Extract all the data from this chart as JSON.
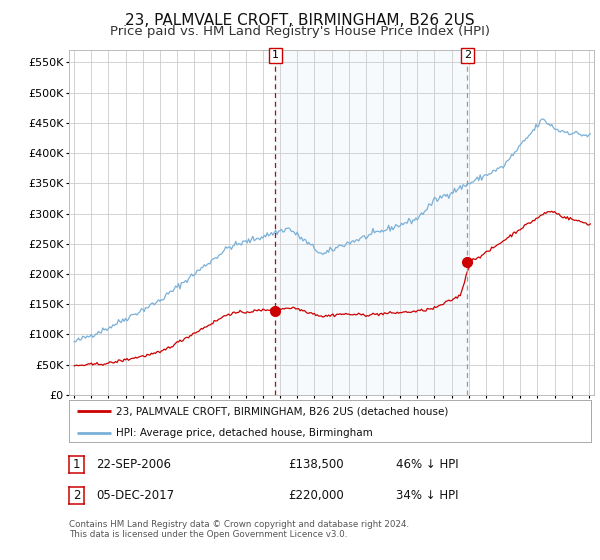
{
  "title": "23, PALMVALE CROFT, BIRMINGHAM, B26 2US",
  "subtitle": "Price paid vs. HM Land Registry's House Price Index (HPI)",
  "title_fontsize": 11,
  "subtitle_fontsize": 9.5,
  "background_color": "#ffffff",
  "grid_color": "#cccccc",
  "hpi_line_color": "#7ab0d8",
  "price_color": "#cc0000",
  "ylim": [
    0,
    570000
  ],
  "yticks": [
    0,
    50000,
    100000,
    150000,
    200000,
    250000,
    300000,
    350000,
    400000,
    450000,
    500000,
    550000
  ],
  "sale1_date": 2006.73,
  "sale1_price": 138500,
  "sale1_label": "1",
  "sale2_date": 2017.92,
  "sale2_price": 220000,
  "sale2_label": "2",
  "legend1": "23, PALMVALE CROFT, BIRMINGHAM, B26 2US (detached house)",
  "legend2": "HPI: Average price, detached house, Birmingham",
  "table_row1": [
    "1",
    "22-SEP-2006",
    "£138,500",
    "46% ↓ HPI"
  ],
  "table_row2": [
    "2",
    "05-DEC-2017",
    "£220,000",
    "34% ↓ HPI"
  ],
  "footnote": "Contains HM Land Registry data © Crown copyright and database right 2024.\nThis data is licensed under the Open Government Licence v3.0.",
  "start_year": 1995,
  "end_year": 2025
}
